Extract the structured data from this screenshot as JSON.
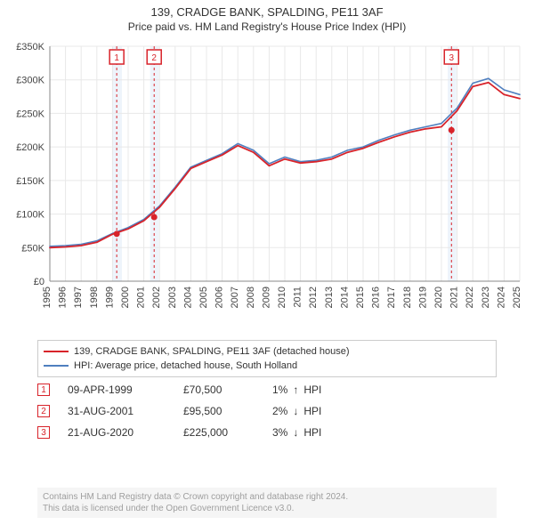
{
  "title": "139, CRADGE BANK, SPALDING, PE11 3AF",
  "subtitle": "Price paid vs. HM Land Registry's House Price Index (HPI)",
  "chart": {
    "type": "line",
    "background_color": "#ffffff",
    "grid_color": "#e8e8e8",
    "axis_color": "#888888",
    "x_years": [
      1995,
      1996,
      1997,
      1998,
      1999,
      2000,
      2001,
      2002,
      2003,
      2004,
      2005,
      2006,
      2007,
      2008,
      2009,
      2010,
      2011,
      2012,
      2013,
      2014,
      2015,
      2016,
      2017,
      2018,
      2019,
      2020,
      2021,
      2022,
      2023,
      2024,
      2025
    ],
    "y_ticks": [
      0,
      50000,
      100000,
      150000,
      200000,
      250000,
      300000,
      350000
    ],
    "y_tick_labels": [
      "£0",
      "£50K",
      "£100K",
      "£150K",
      "£200K",
      "£250K",
      "£300K",
      "£350K"
    ],
    "ylim_max": 350000,
    "highlight_bands": [
      {
        "from": 1999.0,
        "to": 1999.6,
        "color": "#eef4fb"
      },
      {
        "from": 2001.4,
        "to": 2001.95,
        "color": "#eef4fb"
      },
      {
        "from": 2020.4,
        "to": 2020.95,
        "color": "#eef4fb"
      }
    ],
    "marker_lines": [
      {
        "x": 1999.27,
        "label": "1",
        "color": "#d8232a"
      },
      {
        "x": 2001.66,
        "label": "2",
        "color": "#d8232a"
      },
      {
        "x": 2020.64,
        "label": "3",
        "color": "#d8232a"
      }
    ],
    "series": [
      {
        "id": "hpi",
        "label": "HPI: Average price, detached house, South Holland",
        "color": "#4f7fbf",
        "width": 1.6,
        "points": [
          [
            1995,
            52000
          ],
          [
            1996,
            53000
          ],
          [
            1997,
            55000
          ],
          [
            1998,
            60000
          ],
          [
            1999,
            71000
          ],
          [
            2000,
            80000
          ],
          [
            2001,
            92000
          ],
          [
            2002,
            112000
          ],
          [
            2003,
            140000
          ],
          [
            2004,
            170000
          ],
          [
            2005,
            180000
          ],
          [
            2006,
            190000
          ],
          [
            2007,
            205000
          ],
          [
            2008,
            195000
          ],
          [
            2009,
            175000
          ],
          [
            2010,
            185000
          ],
          [
            2011,
            178000
          ],
          [
            2012,
            180000
          ],
          [
            2013,
            185000
          ],
          [
            2014,
            195000
          ],
          [
            2015,
            200000
          ],
          [
            2016,
            210000
          ],
          [
            2017,
            218000
          ],
          [
            2018,
            225000
          ],
          [
            2019,
            230000
          ],
          [
            2020,
            235000
          ],
          [
            2021,
            258000
          ],
          [
            2022,
            295000
          ],
          [
            2023,
            302000
          ],
          [
            2024,
            285000
          ],
          [
            2025,
            278000
          ]
        ]
      },
      {
        "id": "property",
        "label": "139, CRADGE BANK, SPALDING, PE11 3AF (detached house)",
        "color": "#d8232a",
        "width": 1.8,
        "points": [
          [
            1995,
            50000
          ],
          [
            1996,
            51000
          ],
          [
            1997,
            53000
          ],
          [
            1998,
            58000
          ],
          [
            1999,
            70000
          ],
          [
            2000,
            78000
          ],
          [
            2001,
            90000
          ],
          [
            2002,
            110000
          ],
          [
            2003,
            138000
          ],
          [
            2004,
            168000
          ],
          [
            2005,
            178000
          ],
          [
            2006,
            188000
          ],
          [
            2007,
            202000
          ],
          [
            2008,
            192000
          ],
          [
            2009,
            172000
          ],
          [
            2010,
            182000
          ],
          [
            2011,
            176000
          ],
          [
            2012,
            178000
          ],
          [
            2013,
            182000
          ],
          [
            2014,
            192000
          ],
          [
            2015,
            198000
          ],
          [
            2016,
            207000
          ],
          [
            2017,
            215000
          ],
          [
            2018,
            222000
          ],
          [
            2019,
            227000
          ],
          [
            2020,
            230000
          ],
          [
            2021,
            254000
          ],
          [
            2022,
            290000
          ],
          [
            2023,
            296000
          ],
          [
            2024,
            278000
          ],
          [
            2025,
            272000
          ]
        ]
      }
    ],
    "sale_points": [
      {
        "x": 1999.27,
        "y": 70500,
        "color": "#d8232a"
      },
      {
        "x": 2001.66,
        "y": 95500,
        "color": "#d8232a"
      },
      {
        "x": 2020.64,
        "y": 225000,
        "color": "#d8232a"
      }
    ]
  },
  "legend": {
    "items": [
      {
        "color": "#d8232a",
        "label": "139, CRADGE BANK, SPALDING, PE11 3AF (detached house)"
      },
      {
        "color": "#4f7fbf",
        "label": "HPI: Average price, detached house, South Holland"
      }
    ]
  },
  "sales": [
    {
      "idx": "1",
      "color": "#d8232a",
      "date": "09-APR-1999",
      "price": "£70,500",
      "diff_pct": "1%",
      "arrow": "↑",
      "diff_label": "HPI"
    },
    {
      "idx": "2",
      "color": "#d8232a",
      "date": "31-AUG-2001",
      "price": "£95,500",
      "diff_pct": "2%",
      "arrow": "↓",
      "diff_label": "HPI"
    },
    {
      "idx": "3",
      "color": "#d8232a",
      "date": "21-AUG-2020",
      "price": "£225,000",
      "diff_pct": "3%",
      "arrow": "↓",
      "diff_label": "HPI"
    }
  ],
  "footer": {
    "line1": "Contains HM Land Registry data © Crown copyright and database right 2024.",
    "line2": "This data is licensed under the Open Government Licence v3.0."
  }
}
